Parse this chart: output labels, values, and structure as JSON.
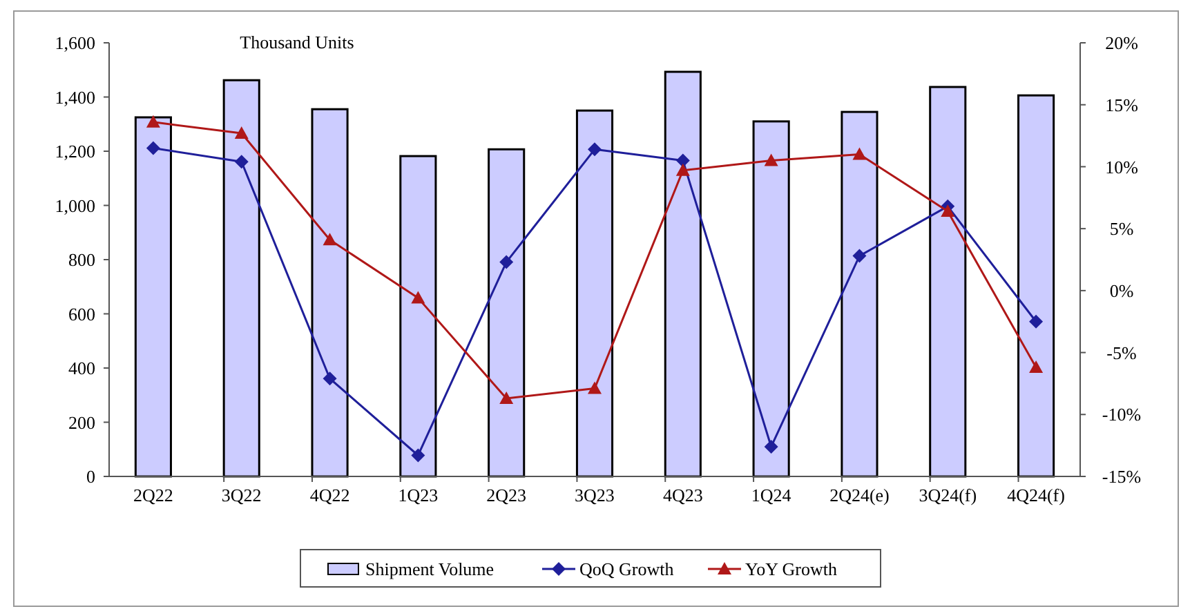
{
  "chart_data": {
    "type": "bar",
    "ylabel": "Thousand Units",
    "categories": [
      "2Q22",
      "3Q22",
      "4Q22",
      "1Q23",
      "2Q23",
      "3Q23",
      "4Q23",
      "1Q24",
      "2Q24(e)",
      "3Q24(f)",
      "4Q24(f)"
    ],
    "series": [
      {
        "name": "Shipment Volume",
        "color": "#ccccff",
        "values": [
          1325,
          1462,
          1355,
          1182,
          1207,
          1350,
          1493,
          1310,
          1345,
          1437,
          1406
        ]
      },
      {
        "name": "QoQ Growth",
        "type": "line",
        "axis": "y2",
        "marker": "diamond",
        "color": "#1f1f9a",
        "values": [
          11.5,
          10.4,
          -7.1,
          -13.3,
          2.3,
          11.4,
          10.5,
          -12.6,
          2.8,
          6.8,
          -2.5
        ]
      },
      {
        "name": "YoY Growth",
        "type": "line",
        "axis": "y2",
        "marker": "triangle",
        "color": "#b01818",
        "values": [
          13.6,
          12.7,
          4.1,
          -0.6,
          -8.7,
          -7.9,
          9.7,
          10.5,
          11.0,
          6.4,
          -6.2
        ]
      }
    ],
    "ylim": [
      0,
      1600
    ],
    "yticks": [
      {
        "value": 0,
        "label": "0"
      },
      {
        "value": 200,
        "label": "200"
      },
      {
        "value": 400,
        "label": "400"
      },
      {
        "value": 600,
        "label": "600"
      },
      {
        "value": 800,
        "label": "800"
      },
      {
        "value": 1000,
        "label": "1,000"
      },
      {
        "value": 1200,
        "label": "1,200"
      },
      {
        "value": 1400,
        "label": "1,400"
      },
      {
        "value": 1600,
        "label": "1,600"
      }
    ],
    "y2lim": [
      -15,
      20
    ],
    "y2ticks": [
      {
        "value": -15,
        "label": "-15%"
      },
      {
        "value": -10,
        "label": "-10%"
      },
      {
        "value": -5,
        "label": "-5%"
      },
      {
        "value": 0,
        "label": "0%"
      },
      {
        "value": 5,
        "label": "5%"
      },
      {
        "value": 10,
        "label": "10%"
      },
      {
        "value": 15,
        "label": "15%"
      },
      {
        "value": 20,
        "label": "20%"
      }
    ],
    "grid": false,
    "legend": "bottom"
  }
}
